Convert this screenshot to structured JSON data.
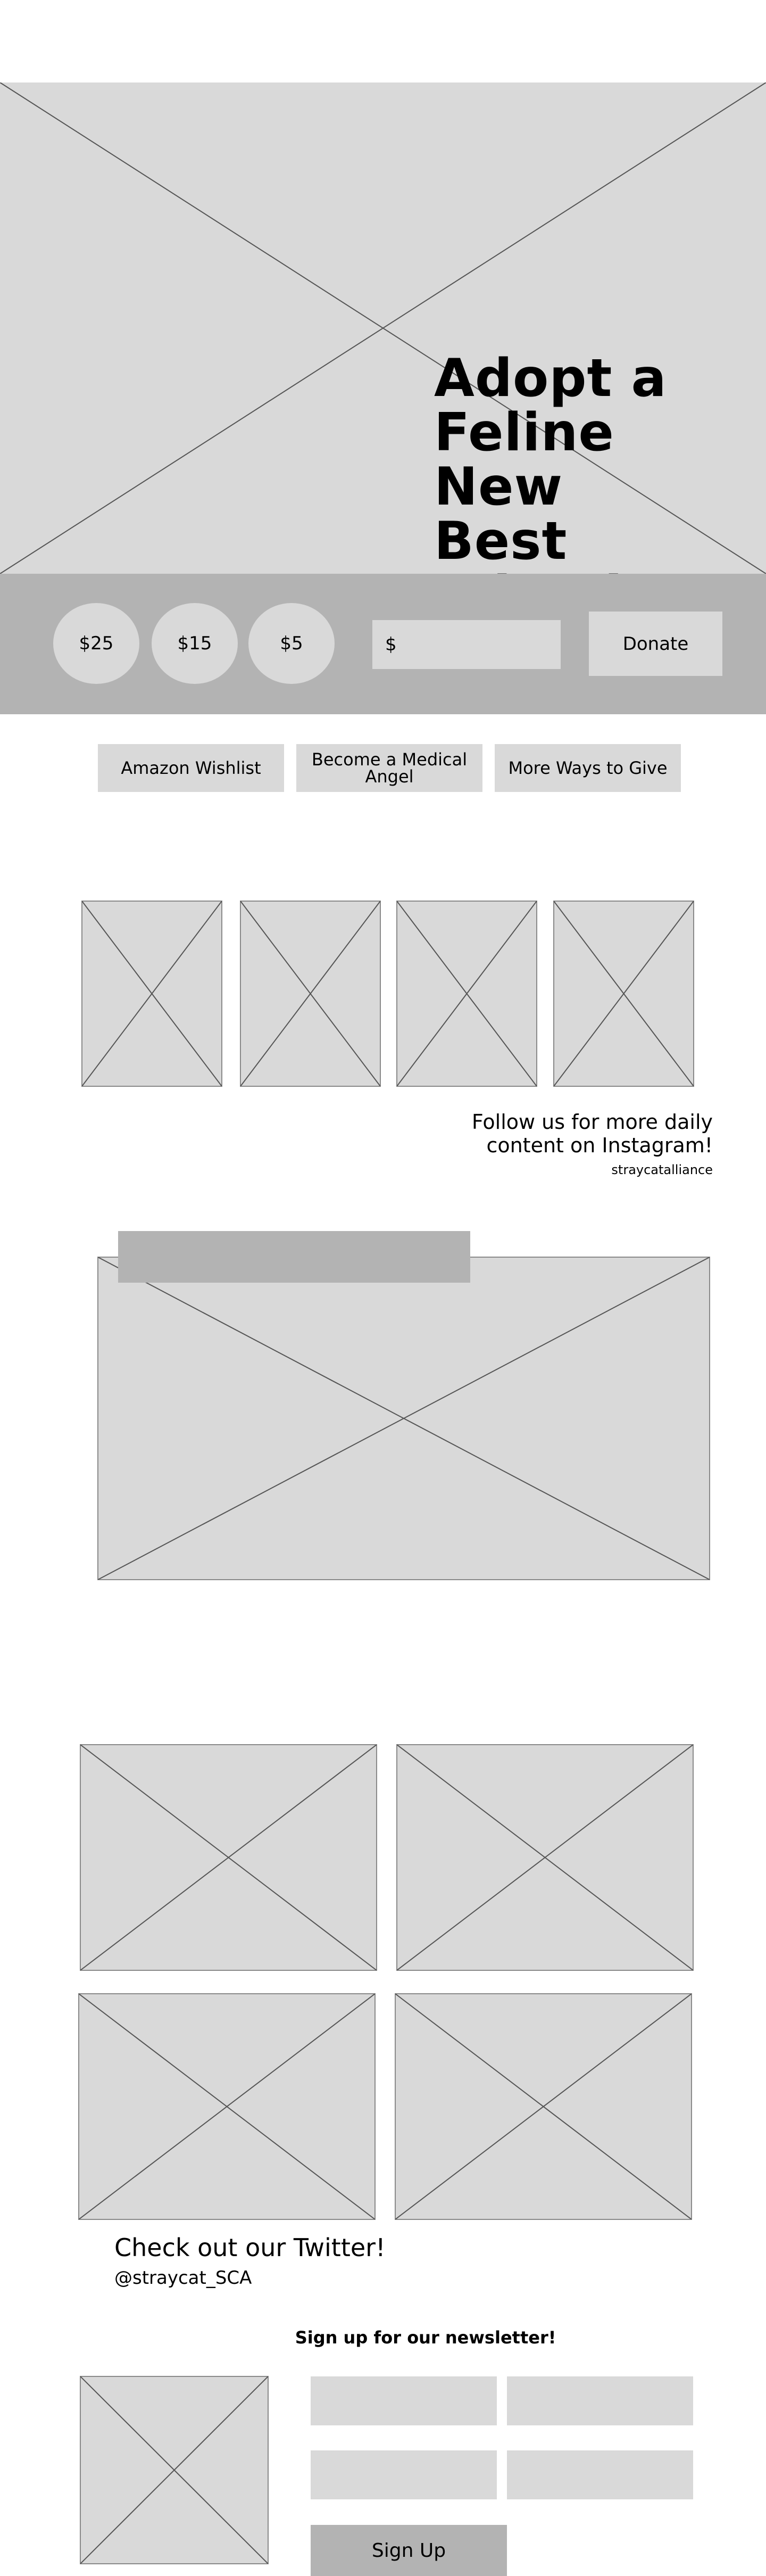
{
  "hero": {
    "title_lines": [
      "Adopt a",
      "Feline New",
      "Best Friend"
    ],
    "image": "placeholder-image"
  },
  "donate": {
    "amounts": [
      "$25",
      "$15",
      "$5"
    ],
    "currency_symbol": "$",
    "custom_amount_value": "",
    "button_label": "Donate"
  },
  "give": {
    "buttons": [
      "Amazon Wishlist",
      "Become a Medical Angel",
      "More Ways to Give"
    ]
  },
  "instagram": {
    "heading": "Follow us for more daily content on Instagram!",
    "handle": "straycatalliance"
  },
  "twitter": {
    "heading": "Check out our Twitter!",
    "handle": "@straycat_SCA"
  },
  "newsletter": {
    "heading": "Sign up for our newsletter!",
    "button_label": "Sign Up"
  },
  "colors": {
    "background": "#ffffff",
    "placeholder": "#d9d9d9",
    "band": "#b3b3b3",
    "text": "#000000"
  },
  "icons": {
    "image_placeholder": "crossed-box-icon"
  }
}
